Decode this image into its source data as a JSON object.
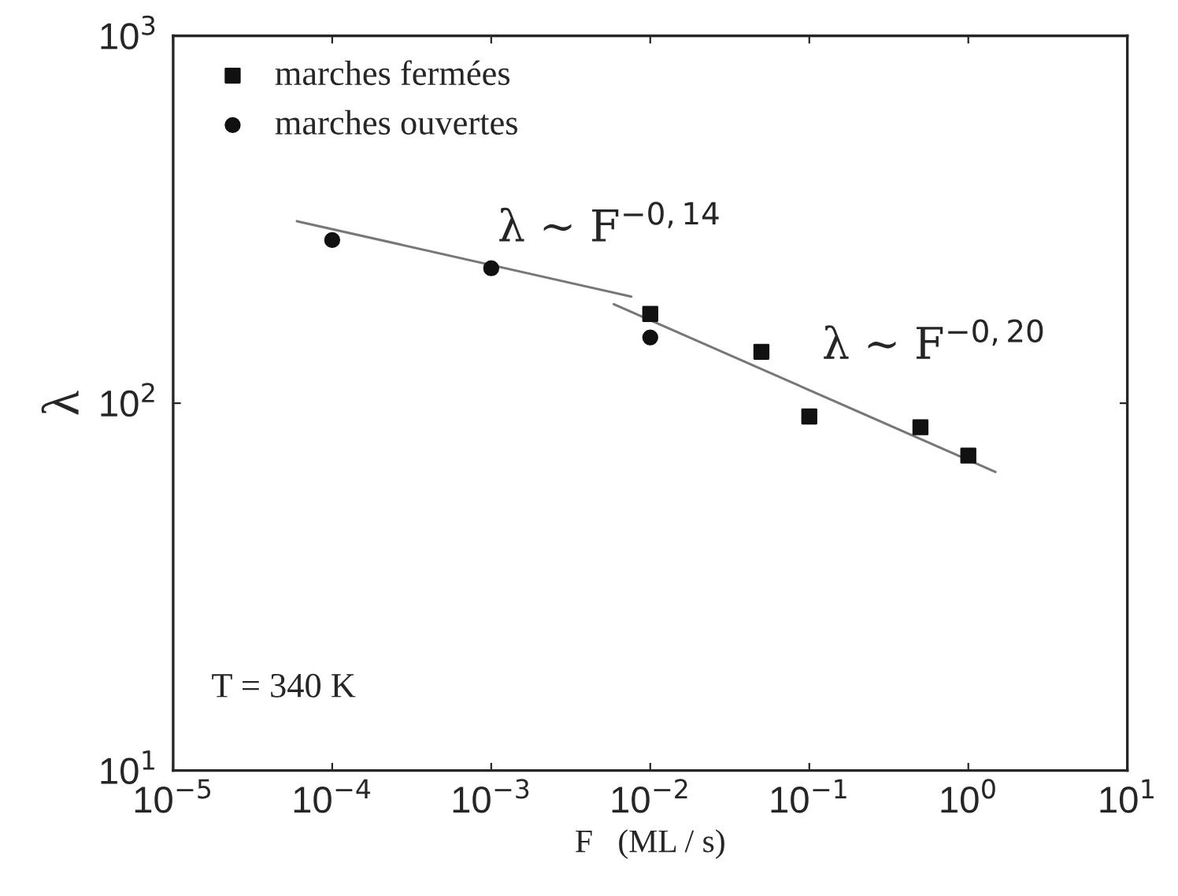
{
  "chart_data": {
    "type": "scatter",
    "xlabel": "F   (ML / s)",
    "ylabel": "λ",
    "log": "xy",
    "legend": "top left",
    "grid": false,
    "xlim": [
      1e-05,
      10
    ],
    "ylim": [
      10,
      1000
    ],
    "xticks": [
      {
        "value": 1e-05,
        "label": "10$^{−5}$"
      },
      {
        "value": 0.0001,
        "label": "10$^{−4}$"
      },
      {
        "value": 0.001,
        "label": "10$^{−3}$"
      },
      {
        "value": 0.01,
        "label": "10$^{−2}$"
      },
      {
        "value": 0.1,
        "label": "10$^{−1}$"
      },
      {
        "value": 1,
        "label": "10$^{0}$"
      },
      {
        "value": 10,
        "label": "10$^{1}$"
      }
    ],
    "yticks": [
      {
        "value": 10,
        "label": "10$^{1}$"
      },
      {
        "value": 100,
        "label": "10$^{2}$"
      },
      {
        "value": 1000,
        "label": "10$^{3}$"
      }
    ],
    "series": [
      {
        "name": "marches fermées",
        "color": "#111111",
        "marker": "square",
        "x": [
          0.01,
          0.05,
          0.1,
          0.5,
          1
        ],
        "values": [
          175,
          138,
          92,
          86,
          72
        ]
      },
      {
        "name": "marches ouvertes",
        "color": "#111111",
        "marker": "circle",
        "x": [
          0.0001,
          0.001,
          0.01
        ],
        "values": [
          278,
          233,
          151
        ]
      },
      {
        "type": "line",
        "color": "#777777",
        "marker": "none",
        "x": [
          6e-05,
          0.0076
        ],
        "values": [
          313,
          195
        ]
      },
      {
        "type": "line",
        "color": "#777777",
        "marker": "none",
        "x": [
          0.0059,
          1.48
        ],
        "values": [
          186,
          65
        ]
      }
    ],
    "annotations": [
      "λ ∼ F$^{−0,14}$",
      "λ ∼ F$^{−0,20}$",
      "T = 340 K"
    ]
  }
}
